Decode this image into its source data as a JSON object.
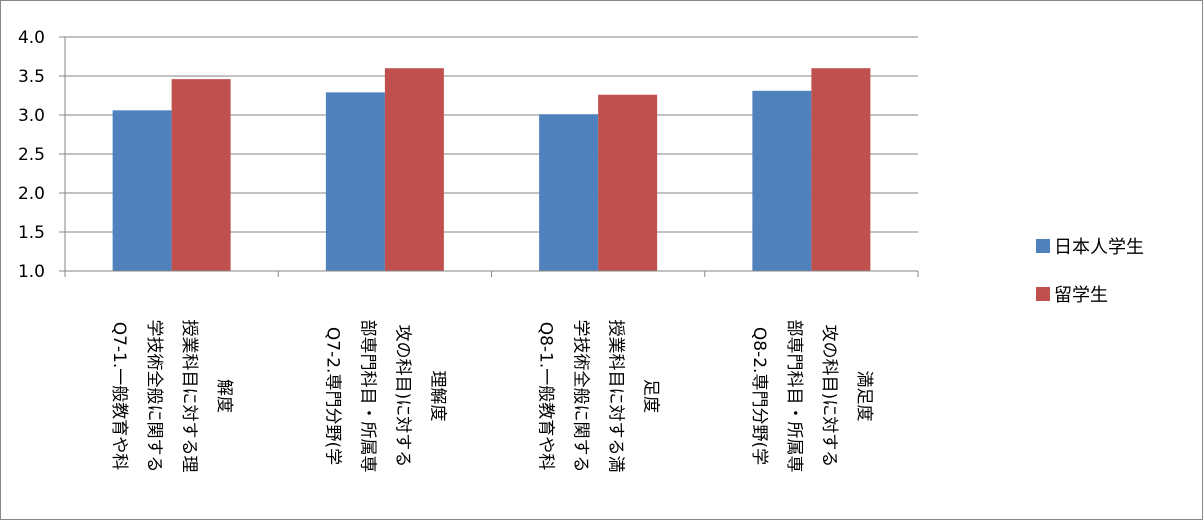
{
  "chart_data": {
    "type": "bar",
    "title": "",
    "xlabel": "",
    "ylabel": "",
    "ylim": [
      1.0,
      4.0
    ],
    "yticks": [
      "1.0",
      "1.5",
      "2.0",
      "2.5",
      "3.0",
      "3.5",
      "4.0"
    ],
    "grid": true,
    "legend_position": "right",
    "categories": [
      [
        "Q7-1.一般教育や科",
        "学技術全般に関する",
        "授業科目に対する理",
        "解度"
      ],
      [
        "Q7-2.専門分野(学",
        "部専門科目・所属専",
        "攻の科目)に対する",
        "理解度"
      ],
      [
        "Q8-1.一般教育や科",
        "学技術全般に関する",
        "授業科目に対する満",
        "足度"
      ],
      [
        "Q8-2.専門分野(学",
        "部専門科目・所属専",
        "攻の科目)に対する",
        "満足度"
      ]
    ],
    "series": [
      {
        "name": "日本人学生",
        "color": "#4f81bd",
        "values": [
          3.06,
          3.29,
          3.01,
          3.31
        ]
      },
      {
        "name": "留学生",
        "color": "#c0504d",
        "values": [
          3.46,
          3.6,
          3.26,
          3.6
        ]
      }
    ]
  }
}
